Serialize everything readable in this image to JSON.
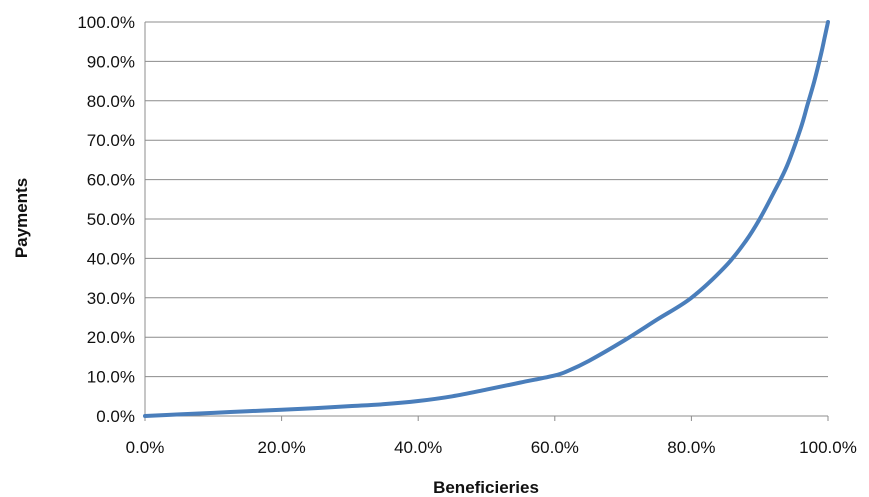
{
  "chart_data": {
    "type": "line",
    "title": "",
    "xlabel": "Beneficieries",
    "ylabel": "Payments",
    "xlim": [
      0,
      100
    ],
    "ylim": [
      0,
      100
    ],
    "x_ticks": [
      "0.0%",
      "20.0%",
      "40.0%",
      "60.0%",
      "80.0%",
      "100.0%"
    ],
    "y_ticks": [
      "0.0%",
      "10.0%",
      "20.0%",
      "30.0%",
      "40.0%",
      "50.0%",
      "60.0%",
      "70.0%",
      "80.0%",
      "90.0%",
      "100.0%"
    ],
    "grid": "horizontal",
    "legend": "none",
    "line_color": "#4a7ebb",
    "series": [
      {
        "x": [
          0,
          5,
          10,
          15,
          20,
          25,
          30,
          35,
          40,
          45,
          50,
          55,
          60,
          62,
          65,
          70,
          75,
          80,
          85,
          88,
          90,
          92,
          94,
          96,
          97,
          98,
          99,
          99.5,
          100
        ],
        "y": [
          0,
          0.4,
          0.8,
          1.2,
          1.6,
          2.0,
          2.5,
          3.0,
          3.8,
          5.0,
          6.7,
          8.5,
          10.3,
          11.5,
          14.0,
          19.0,
          24.5,
          30.0,
          38.0,
          44.5,
          50.0,
          56.5,
          63.5,
          73.0,
          79.0,
          85.0,
          92.0,
          96.0,
          100
        ]
      }
    ]
  }
}
